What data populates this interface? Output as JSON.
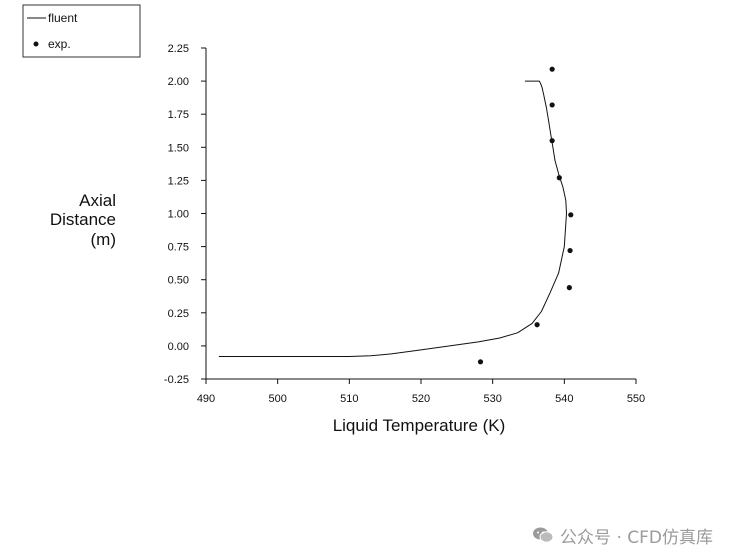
{
  "chart_data": {
    "type": "line",
    "xlabel": "Liquid Temperature (K)",
    "ylabel": [
      "Axial",
      "Distance",
      "(m)"
    ],
    "xlim": [
      490,
      550
    ],
    "ylim": [
      -0.25,
      2.25
    ],
    "x_ticks": [
      490,
      500,
      510,
      520,
      530,
      540,
      550
    ],
    "y_ticks": [
      -0.25,
      0.0,
      0.25,
      0.5,
      0.75,
      1.0,
      1.25,
      1.5,
      1.75,
      2.0,
      2.25
    ],
    "x_tick_labels": [
      "490",
      "500",
      "510",
      "520",
      "530",
      "540",
      "550"
    ],
    "y_tick_labels": [
      "-0.25",
      "0.00",
      "0.25",
      "0.50",
      "0.75",
      "1.00",
      "1.25",
      "1.50",
      "1.75",
      "2.00",
      "2.25"
    ],
    "legend": {
      "placement": "top-left",
      "entries": [
        "fluent",
        "exp."
      ]
    },
    "grid": false,
    "series": [
      {
        "name": "fluent",
        "style": "line",
        "color": "#111111",
        "x": [
          491.8,
          500,
          505,
          510,
          513,
          516,
          520,
          524,
          528,
          531,
          533.5,
          535.5,
          536.8,
          538,
          539.2,
          540,
          540.3,
          540.2,
          539.8,
          539.2,
          538.7,
          538.4,
          538.1,
          537.8,
          537.5,
          537.3,
          537.1,
          536.9,
          536.7,
          536.5,
          534.5
        ],
        "y": [
          -0.08,
          -0.08,
          -0.08,
          -0.08,
          -0.075,
          -0.06,
          -0.03,
          0.0,
          0.03,
          0.06,
          0.1,
          0.17,
          0.26,
          0.4,
          0.55,
          0.75,
          1.0,
          1.1,
          1.2,
          1.3,
          1.4,
          1.5,
          1.6,
          1.7,
          1.8,
          1.85,
          1.9,
          1.95,
          1.98,
          2.0,
          2.0
        ]
      },
      {
        "name": "exp.",
        "style": "points",
        "color": "#111111",
        "x": [
          528.3,
          536.2,
          540.7,
          540.8,
          540.9,
          539.3,
          538.3,
          538.3,
          538.3
        ],
        "y": [
          -0.12,
          0.16,
          0.44,
          0.72,
          0.99,
          1.27,
          1.55,
          1.82,
          2.09
        ]
      }
    ]
  },
  "watermark": {
    "text": "公众号 · CFD仿真库",
    "icon": "wechat-icon"
  }
}
